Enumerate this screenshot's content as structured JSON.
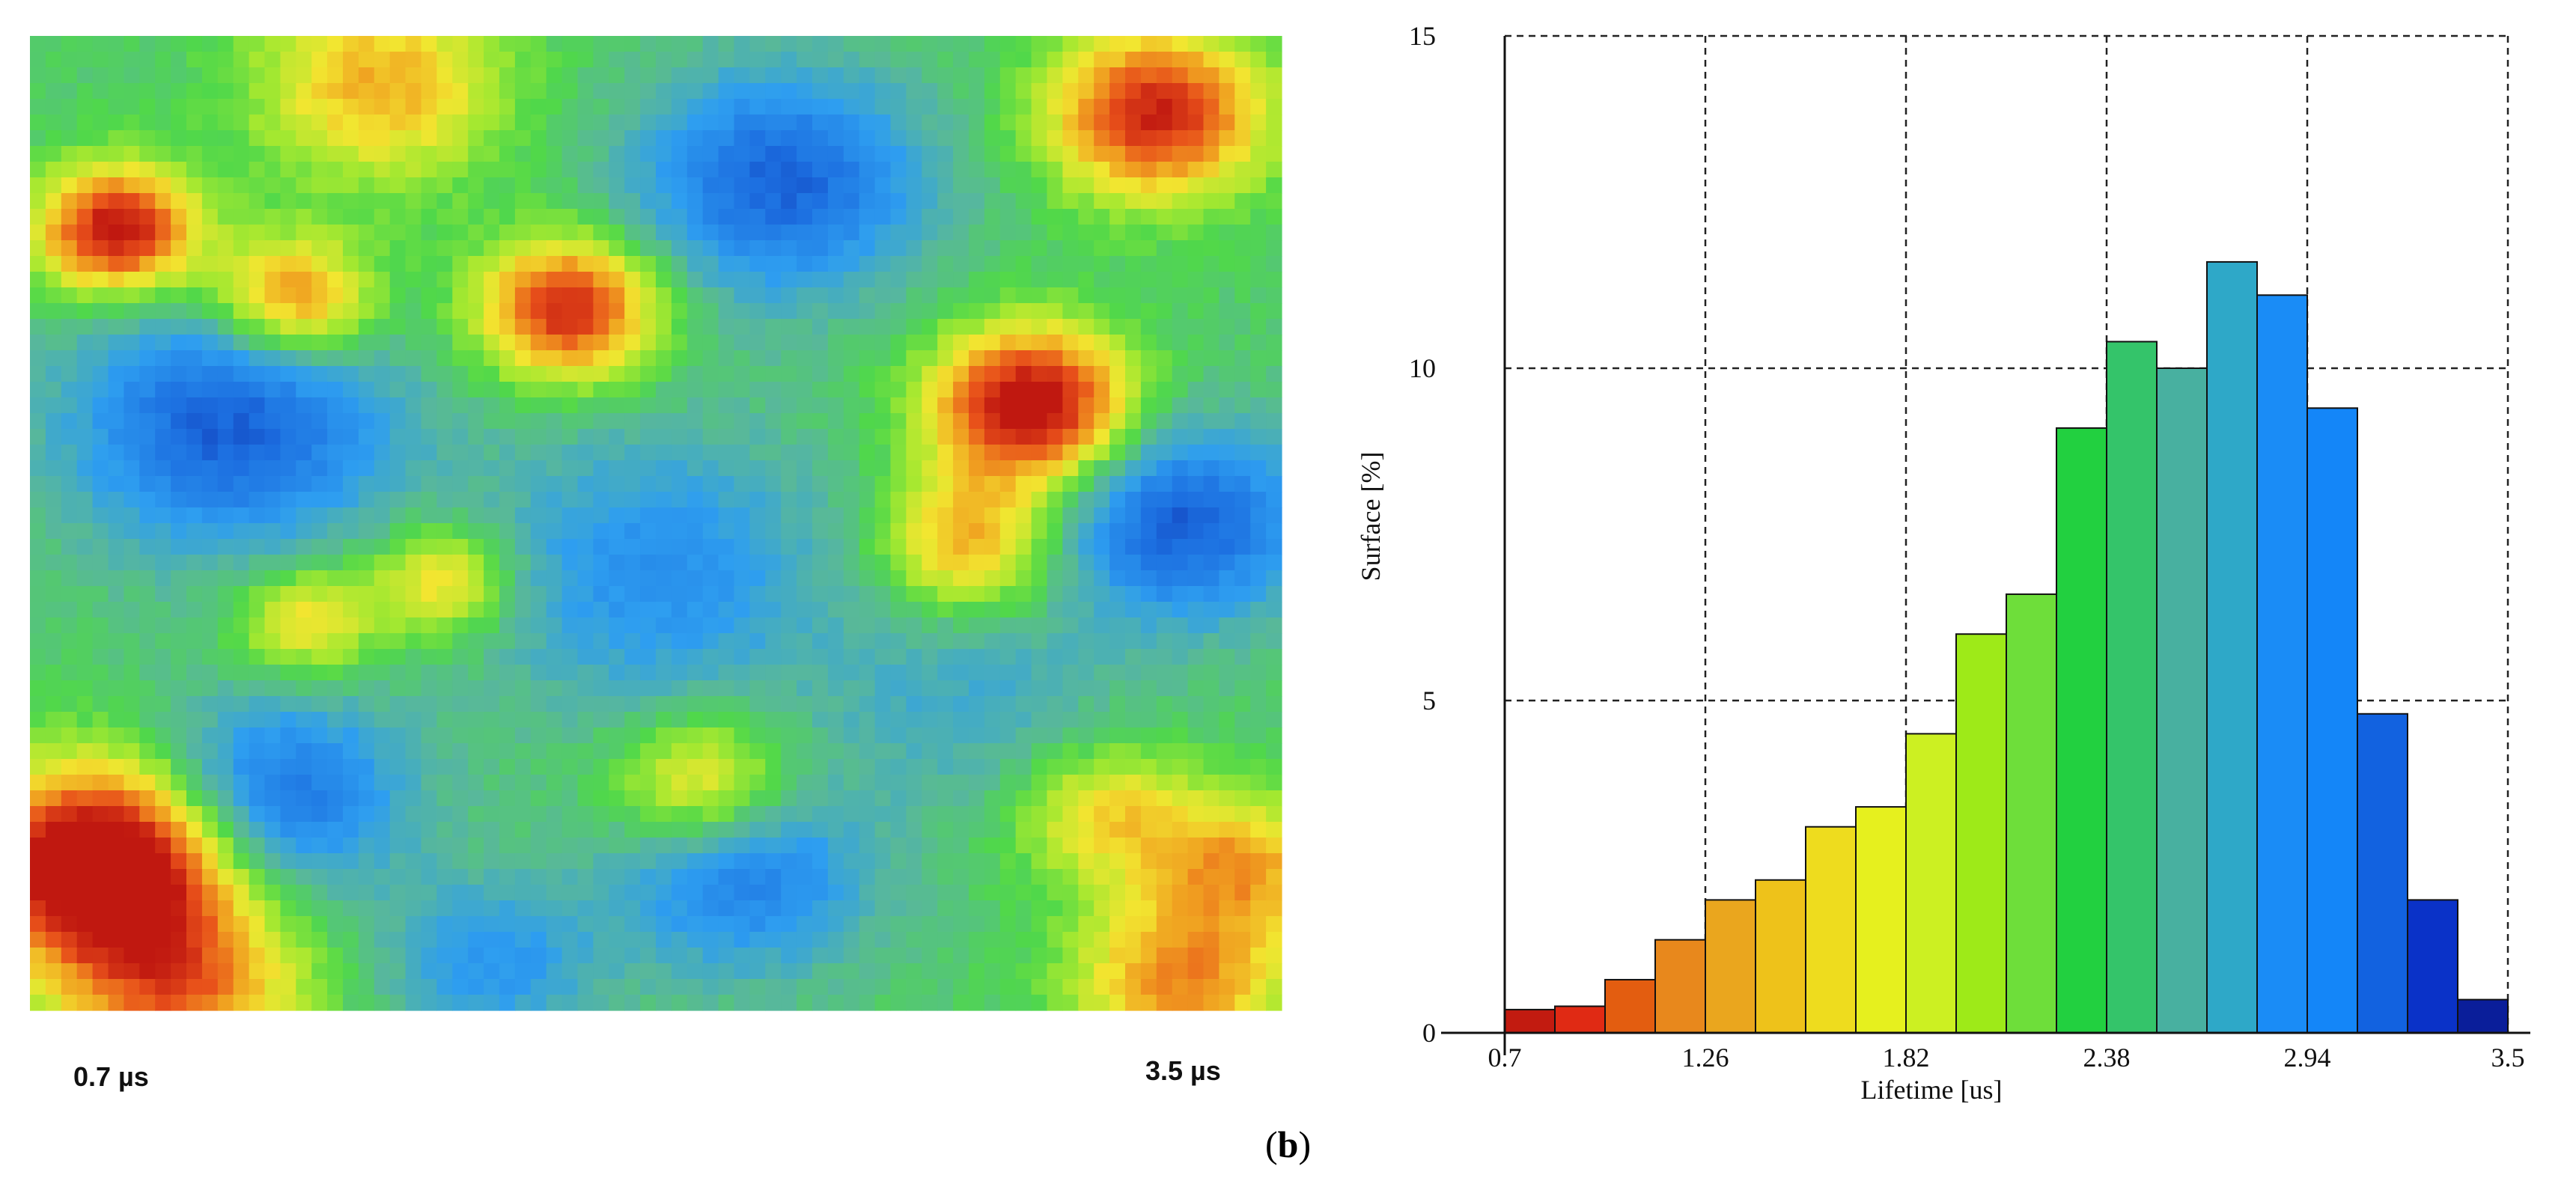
{
  "panel_label": "b",
  "chart_data": [
    {
      "type": "heatmap",
      "title": "",
      "colorbar": {
        "min_label": "0.7 µs",
        "max_label": "3.5 µs",
        "min_color": "#8b1a10",
        "max_color": "#000000",
        "colors": [
          "#d42a10",
          "#e01e10",
          "#e35a10",
          "#e6821a",
          "#eaa222",
          "#eec21a",
          "#f0e020",
          "#eef23a",
          "#d2f22a",
          "#a6ea2a",
          "#6ede3a",
          "#2ecf4a",
          "#3ec27a",
          "#4aab9a",
          "#2ea2c2",
          "#1c8ef0",
          "#1478f2",
          "#125ed8",
          "#0e3ec6",
          "#0a2396"
        ]
      }
    },
    {
      "type": "bar",
      "title": "",
      "xlabel": "Lifetime [us]",
      "ylabel": "Surface [%]",
      "xlim": [
        0.7,
        3.5
      ],
      "ylim": [
        0,
        15
      ],
      "xticks": [
        "0.7",
        "1.26",
        "1.82",
        "2.38",
        "2.94",
        "3.5"
      ],
      "yticks": [
        "0",
        "5",
        "10",
        "15"
      ],
      "grid": true,
      "bin_width": 0.14,
      "bins_start": [
        0.7,
        0.84,
        0.98,
        1.12,
        1.26,
        1.4,
        1.54,
        1.68,
        1.82,
        1.96,
        2.1,
        2.24,
        2.38,
        2.52,
        2.66,
        2.8,
        2.94,
        3.08,
        3.22,
        3.36
      ],
      "values": [
        0.35,
        0.4,
        0.8,
        1.4,
        2.0,
        2.3,
        3.1,
        3.4,
        4.5,
        6.0,
        6.6,
        9.1,
        10.4,
        10.0,
        11.6,
        11.1,
        9.4,
        4.8,
        2.0,
        0.5
      ],
      "colors": [
        "#c21b10",
        "#e02a14",
        "#e35d10",
        "#e8881c",
        "#eaa61e",
        "#eec21a",
        "#eedc1e",
        "#e6f01e",
        "#ccf022",
        "#9eea18",
        "#6ede3a",
        "#22d040",
        "#34c46a",
        "#48b0a0",
        "#2ea8c8",
        "#1a8cf6",
        "#1486f8",
        "#1262e0",
        "#0a32c8",
        "#0a1e9a"
      ]
    }
  ]
}
